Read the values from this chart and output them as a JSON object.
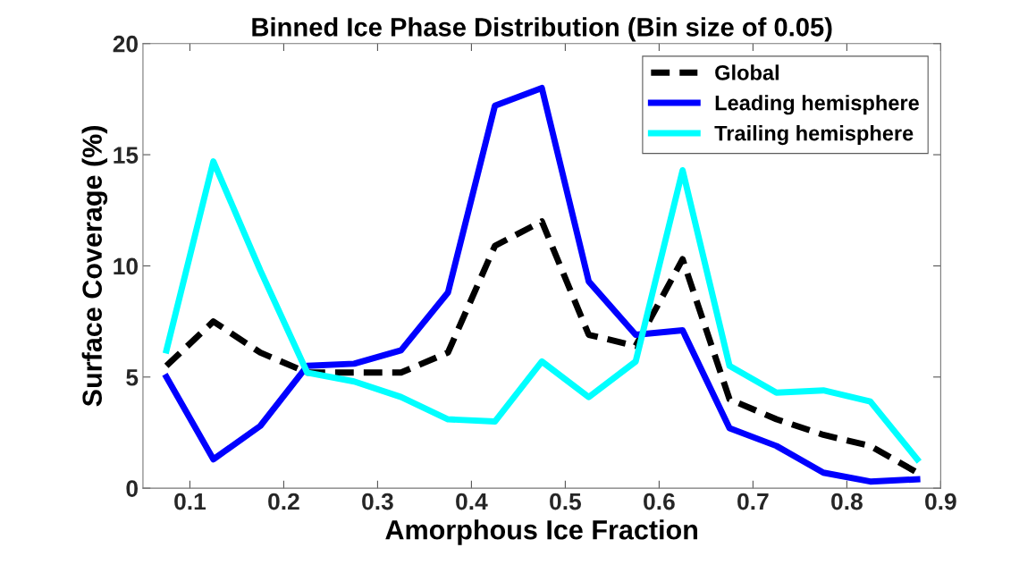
{
  "chart_data": {
    "type": "line",
    "title": "Binned Ice Phase Distribution (Bin size of 0.05)",
    "xlabel": "Amorphous Ice Fraction",
    "ylabel": "Surface Coverage (%)",
    "x": [
      0.075,
      0.125,
      0.175,
      0.225,
      0.275,
      0.325,
      0.375,
      0.425,
      0.475,
      0.525,
      0.575,
      0.625,
      0.675,
      0.725,
      0.775,
      0.825,
      0.875
    ],
    "series": [
      {
        "name": "Global",
        "color": "#000000",
        "line_style": "dashed",
        "values": [
          5.5,
          7.5,
          6.1,
          5.2,
          5.2,
          5.2,
          6.1,
          10.9,
          12.0,
          6.9,
          6.4,
          10.3,
          4.0,
          3.1,
          2.4,
          1.9,
          0.7
        ]
      },
      {
        "name": "Leading hemisphere",
        "color": "#0000ff",
        "line_style": "solid",
        "values": [
          5.0,
          1.3,
          2.8,
          5.5,
          5.6,
          6.2,
          8.8,
          17.2,
          18.0,
          9.3,
          6.9,
          7.1,
          2.7,
          1.9,
          0.7,
          0.3,
          0.4
        ]
      },
      {
        "name": "Trailing hemisphere",
        "color": "#00ffff",
        "line_style": "solid",
        "values": [
          6.2,
          14.7,
          9.8,
          5.2,
          4.8,
          4.1,
          3.1,
          3.0,
          5.7,
          4.1,
          5.7,
          14.3,
          5.5,
          4.3,
          4.4,
          3.9,
          1.3
        ]
      }
    ],
    "xlim": [
      0.05,
      0.9
    ],
    "ylim": [
      0,
      20
    ],
    "xticks": [
      0.1,
      0.2,
      0.3,
      0.4,
      0.5,
      0.6,
      0.7,
      0.8,
      0.9
    ],
    "yticks": [
      0,
      5,
      10,
      15,
      20
    ],
    "grid": false,
    "legend": "top right"
  }
}
